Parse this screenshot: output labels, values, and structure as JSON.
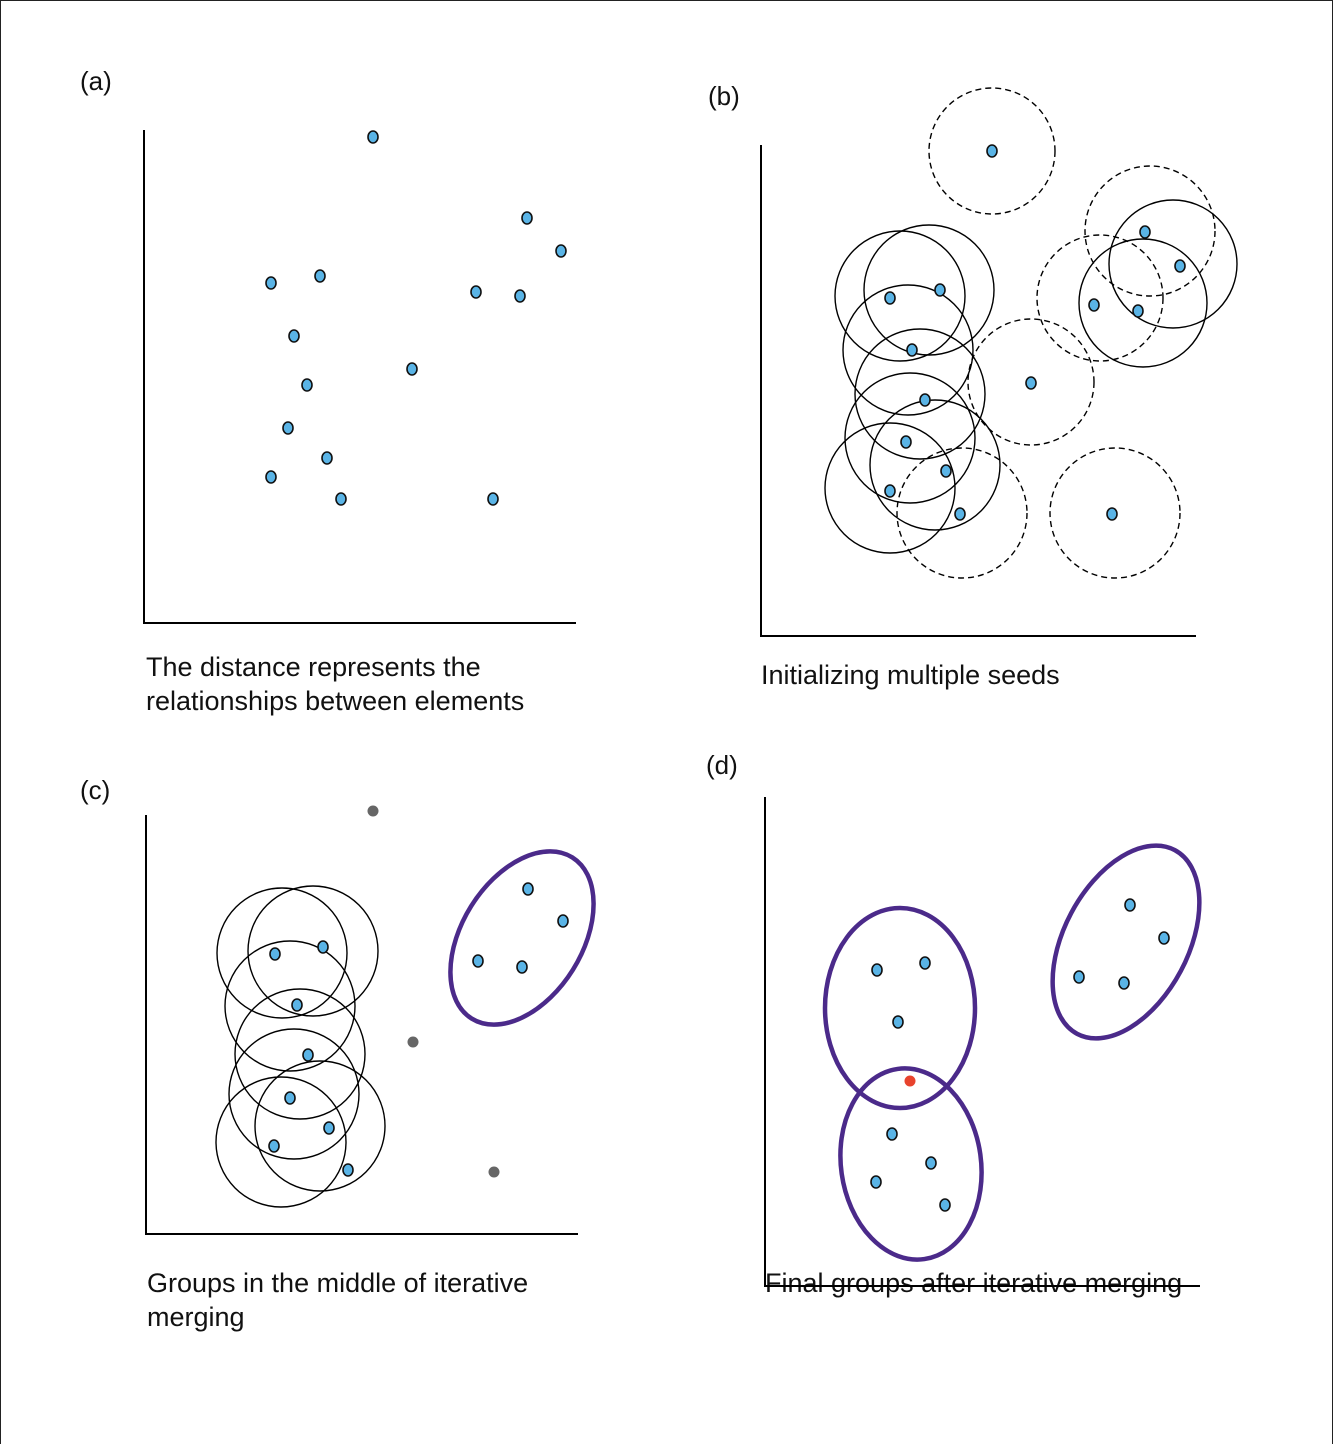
{
  "colors": {
    "point_fill": "#5ab4e6",
    "point_stroke": "#111111",
    "outlier": "#666666",
    "highlight": "#e8432d",
    "group_outline": "#4b2a8a",
    "seed_outline": "#000000",
    "axis": "#000000"
  },
  "panels": [
    {
      "id": "a",
      "label": "(a)",
      "caption_lines": [
        "The distance represents the",
        "relationships between elements"
      ]
    },
    {
      "id": "b",
      "label": "(b)",
      "caption_lines": [
        "Initializing multiple seeds"
      ]
    },
    {
      "id": "c",
      "label": "(c)",
      "caption_lines": [
        "Groups in the middle of iterative",
        "merging"
      ]
    },
    {
      "id": "d",
      "label": "(d)",
      "caption_lines": [
        "Final groups after iterative merging"
      ]
    }
  ]
}
